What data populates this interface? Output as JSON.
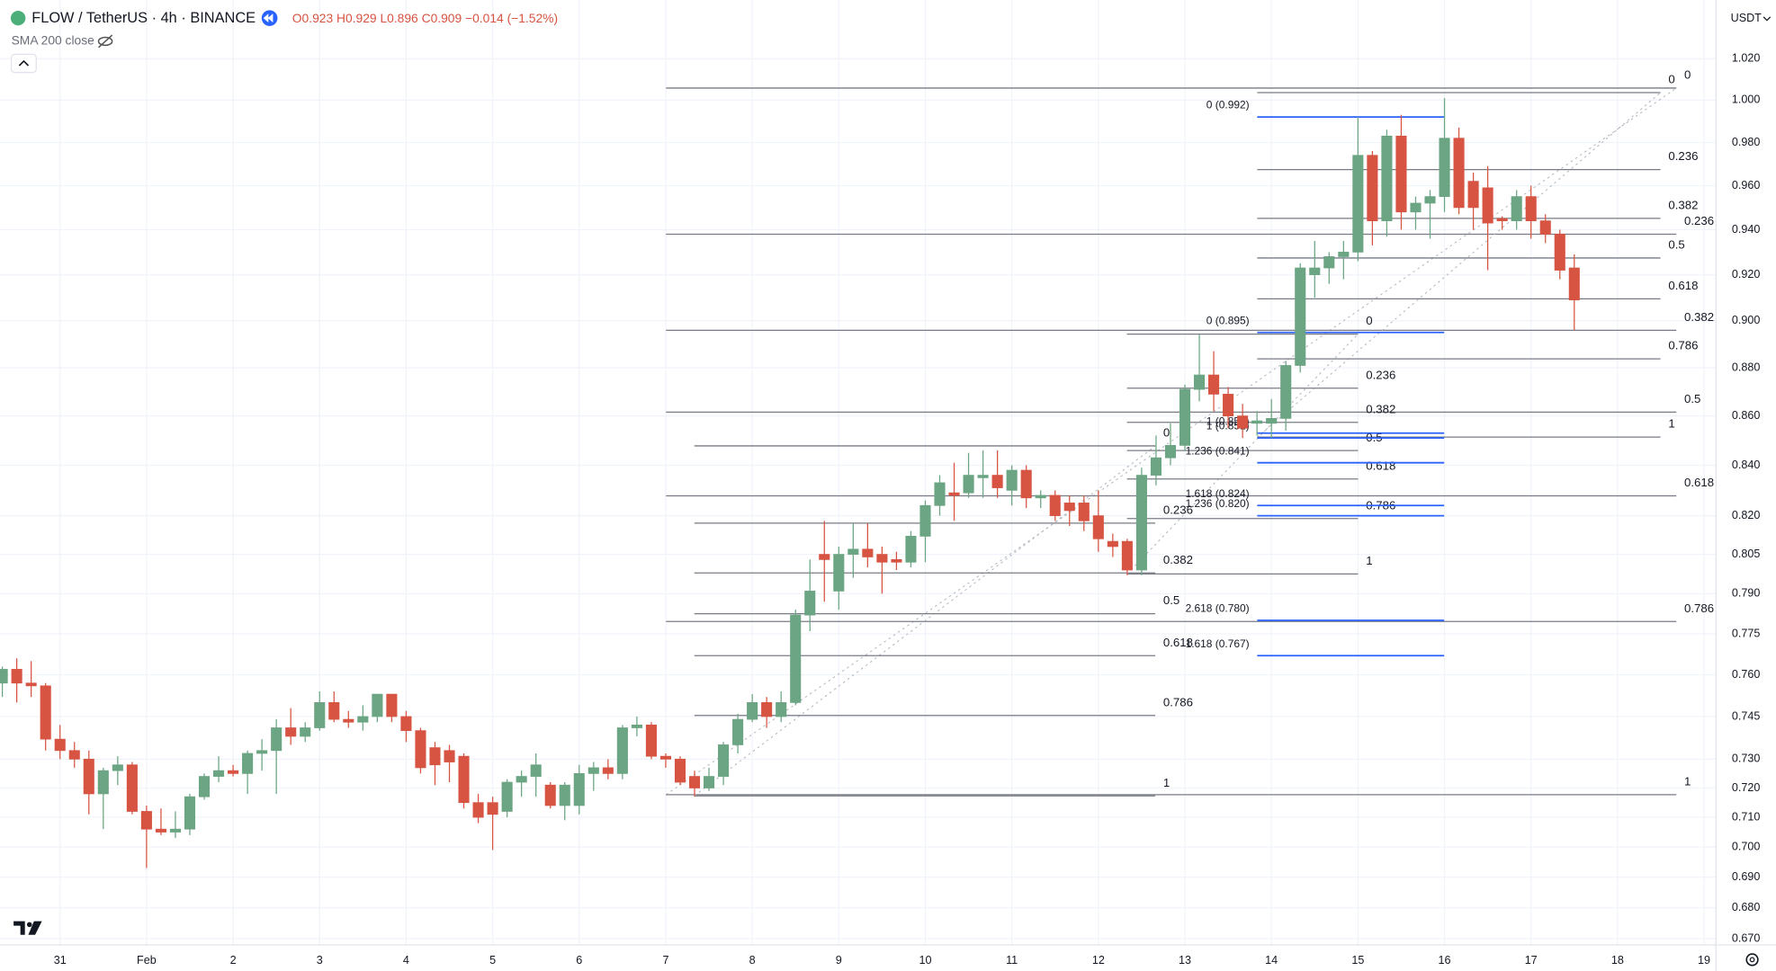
{
  "header": {
    "symbol": "FLOW / TetherUS · 4h · BINANCE",
    "ohlc": [
      "O0.923",
      "H0.929",
      "L0.896",
      "C0.909",
      "−0.014 (−1.52%)"
    ],
    "indicator": "SMA 200 close",
    "currency": "USDT"
  },
  "chart_data": {
    "type": "candlestick",
    "log_scale": true,
    "grid": true,
    "up_color": "#6ba583",
    "down_color": "#d75442",
    "x": [
      -16,
      -12,
      -8,
      -4,
      0,
      4,
      8,
      12,
      16,
      20,
      24,
      28,
      32,
      36,
      40,
      44,
      48,
      52,
      56,
      60,
      64,
      68,
      72,
      76,
      80,
      84,
      88,
      92,
      96,
      100,
      104,
      108,
      112,
      116,
      120,
      124,
      128,
      132,
      136,
      140,
      144,
      148,
      152,
      156,
      160,
      164,
      168,
      172,
      176,
      180,
      184,
      188,
      192,
      196,
      200,
      204,
      208,
      212,
      216,
      220,
      224,
      228,
      232,
      236,
      240,
      244,
      248,
      252,
      256,
      260,
      264,
      268,
      272,
      276,
      280,
      284,
      288,
      292,
      296,
      300,
      304,
      308,
      312,
      316,
      320,
      324,
      328,
      332,
      336,
      340,
      344,
      348,
      352,
      356,
      360,
      364,
      368,
      372,
      376,
      380,
      384,
      388,
      392,
      396,
      400,
      404,
      408,
      412,
      416,
      420
    ],
    "open": [
      0.757,
      0.762,
      0.757,
      0.756,
      0.737,
      0.733,
      0.73,
      0.718,
      0.726,
      0.728,
      0.712,
      0.706,
      0.705,
      0.706,
      0.717,
      0.724,
      0.726,
      0.725,
      0.732,
      0.733,
      0.741,
      0.738,
      0.741,
      0.75,
      0.744,
      0.743,
      0.745,
      0.753,
      0.745,
      0.74,
      0.734,
      0.733,
      0.731,
      0.715,
      0.715,
      0.712,
      0.722,
      0.724,
      0.721,
      0.714,
      0.714,
      0.725,
      0.727,
      0.725,
      0.741,
      0.742,
      0.731,
      0.73,
      0.724,
      0.72,
      0.724,
      0.735,
      0.744,
      0.75,
      0.745,
      0.75,
      0.782,
      0.805,
      0.791,
      0.805,
      0.807,
      0.805,
      0.803,
      0.802,
      0.812,
      0.824,
      0.829,
      0.829,
      0.835,
      0.836,
      0.83,
      0.838,
      0.827,
      0.828,
      0.825,
      0.825,
      0.82,
      0.81,
      0.81,
      0.799,
      0.836,
      0.843,
      0.848,
      0.871,
      0.877,
      0.869,
      0.86,
      0.857,
      0.857,
      0.859,
      0.881,
      0.92,
      0.923,
      0.928,
      0.93,
      0.974,
      0.944,
      0.983,
      0.948,
      0.952,
      0.955,
      0.982,
      0.962,
      0.959,
      0.945,
      0.944,
      0.955,
      0.944,
      0.938,
      0.923
    ],
    "high": [
      0.763,
      0.766,
      0.765,
      0.757,
      0.742,
      0.736,
      0.733,
      0.727,
      0.731,
      0.729,
      0.714,
      0.713,
      0.712,
      0.718,
      0.725,
      0.731,
      0.728,
      0.733,
      0.737,
      0.744,
      0.748,
      0.743,
      0.754,
      0.754,
      0.747,
      0.749,
      0.753,
      0.753,
      0.747,
      0.741,
      0.736,
      0.735,
      0.732,
      0.718,
      0.717,
      0.723,
      0.726,
      0.732,
      0.722,
      0.722,
      0.728,
      0.729,
      0.73,
      0.742,
      0.745,
      0.743,
      0.732,
      0.731,
      0.726,
      0.727,
      0.736,
      0.746,
      0.753,
      0.752,
      0.754,
      0.784,
      0.803,
      0.818,
      0.808,
      0.817,
      0.817,
      0.808,
      0.806,
      0.814,
      0.826,
      0.836,
      0.841,
      0.845,
      0.846,
      0.846,
      0.84,
      0.84,
      0.83,
      0.83,
      0.828,
      0.828,
      0.83,
      0.813,
      0.811,
      0.839,
      0.852,
      0.857,
      0.873,
      0.894,
      0.887,
      0.872,
      0.865,
      0.862,
      0.867,
      0.883,
      0.925,
      0.935,
      0.93,
      0.935,
      0.992,
      0.976,
      0.986,
      0.993,
      0.955,
      0.958,
      1.001,
      0.987,
      0.966,
      0.969,
      0.946,
      0.958,
      0.96,
      0.947,
      0.94,
      0.929
    ],
    "low": [
      0.752,
      0.75,
      0.752,
      0.733,
      0.73,
      0.727,
      0.711,
      0.706,
      0.721,
      0.711,
      0.693,
      0.704,
      0.703,
      0.704,
      0.716,
      0.722,
      0.724,
      0.718,
      0.726,
      0.718,
      0.735,
      0.736,
      0.74,
      0.743,
      0.741,
      0.74,
      0.743,
      0.743,
      0.736,
      0.725,
      0.721,
      0.722,
      0.713,
      0.708,
      0.699,
      0.71,
      0.717,
      0.717,
      0.713,
      0.709,
      0.711,
      0.719,
      0.723,
      0.723,
      0.738,
      0.73,
      0.727,
      0.721,
      0.717,
      0.719,
      0.721,
      0.732,
      0.743,
      0.741,
      0.743,
      0.749,
      0.776,
      0.787,
      0.784,
      0.796,
      0.8,
      0.79,
      0.799,
      0.8,
      0.802,
      0.82,
      0.818,
      0.827,
      0.827,
      0.827,
      0.824,
      0.823,
      0.823,
      0.818,
      0.816,
      0.814,
      0.806,
      0.804,
      0.797,
      0.797,
      0.832,
      0.84,
      0.846,
      0.866,
      0.862,
      0.855,
      0.851,
      0.852,
      0.851,
      0.854,
      0.878,
      0.91,
      0.916,
      0.918,
      0.926,
      0.933,
      0.937,
      0.94,
      0.94,
      0.936,
      0.948,
      0.947,
      0.94,
      0.922,
      0.94,
      0.94,
      0.936,
      0.934,
      0.918,
      0.896
    ],
    "close": [
      0.762,
      0.757,
      0.756,
      0.737,
      0.733,
      0.73,
      0.718,
      0.726,
      0.728,
      0.712,
      0.706,
      0.705,
      0.706,
      0.717,
      0.724,
      0.726,
      0.725,
      0.732,
      0.733,
      0.741,
      0.738,
      0.741,
      0.75,
      0.744,
      0.743,
      0.745,
      0.753,
      0.745,
      0.74,
      0.727,
      0.728,
      0.729,
      0.715,
      0.71,
      0.711,
      0.722,
      0.724,
      0.728,
      0.714,
      0.721,
      0.725,
      0.727,
      0.725,
      0.741,
      0.742,
      0.731,
      0.73,
      0.722,
      0.72,
      0.724,
      0.735,
      0.744,
      0.75,
      0.745,
      0.75,
      0.782,
      0.791,
      0.803,
      0.805,
      0.807,
      0.804,
      0.802,
      0.802,
      0.812,
      0.824,
      0.833,
      0.828,
      0.836,
      0.836,
      0.831,
      0.838,
      0.827,
      0.828,
      0.82,
      0.822,
      0.818,
      0.811,
      0.808,
      0.799,
      0.836,
      0.843,
      0.848,
      0.871,
      0.877,
      0.869,
      0.86,
      0.855,
      0.858,
      0.859,
      0.881,
      0.923,
      0.923,
      0.928,
      0.93,
      0.974,
      0.944,
      0.983,
      0.948,
      0.952,
      0.955,
      0.982,
      0.95,
      0.95,
      0.943,
      0.944,
      0.955,
      0.944,
      0.938,
      0.922,
      0.909
    ],
    "xlim": [
      -16.65,
      459.3
    ],
    "xticks": [
      {
        "value": 0,
        "label": "31"
      },
      {
        "value": 24,
        "label": "Feb"
      },
      {
        "value": 48,
        "label": "2"
      },
      {
        "value": 72,
        "label": "3"
      },
      {
        "value": 96,
        "label": "4"
      },
      {
        "value": 120,
        "label": "5"
      },
      {
        "value": 144,
        "label": "6"
      },
      {
        "value": 168,
        "label": "7"
      },
      {
        "value": 192,
        "label": "8"
      },
      {
        "value": 216,
        "label": "9"
      },
      {
        "value": 240,
        "label": "10"
      },
      {
        "value": 264,
        "label": "11"
      },
      {
        "value": 288,
        "label": "12"
      },
      {
        "value": 312,
        "label": "13"
      },
      {
        "value": 336,
        "label": "14"
      },
      {
        "value": 360,
        "label": "15"
      },
      {
        "value": 384,
        "label": "16"
      },
      {
        "value": 408,
        "label": "17"
      },
      {
        "value": 432,
        "label": "18"
      },
      {
        "value": 456,
        "label": "19"
      }
    ],
    "ylim": [
      0.668,
      1.049
    ],
    "yticks": [
      {
        "value": 1.02,
        "label": "1.020"
      },
      {
        "value": 1.0,
        "label": "1.000"
      },
      {
        "value": 0.98,
        "label": "0.980"
      },
      {
        "value": 0.96,
        "label": "0.960"
      },
      {
        "value": 0.94,
        "label": "0.940"
      },
      {
        "value": 0.92,
        "label": "0.920"
      },
      {
        "value": 0.9,
        "label": "0.900"
      },
      {
        "value": 0.88,
        "label": "0.880"
      },
      {
        "value": 0.86,
        "label": "0.860"
      },
      {
        "value": 0.84,
        "label": "0.840"
      },
      {
        "value": 0.82,
        "label": "0.820"
      },
      0.805,
      {
        "value": 0.79,
        "label": "0.790"
      },
      0.775,
      {
        "value": 0.76,
        "label": "0.760"
      },
      0.745,
      {
        "value": 0.73,
        "label": "0.730"
      },
      {
        "value": 0.72,
        "label": "0.720"
      },
      {
        "value": 0.71,
        "label": "0.710"
      },
      {
        "value": 0.7,
        "label": "0.700"
      },
      {
        "value": 0.69,
        "label": "0.690"
      },
      {
        "value": 0.68,
        "label": "0.680"
      },
      {
        "value": 0.67,
        "label": "0.670"
      }
    ],
    "fibs": [
      {
        "color": "#787b86",
        "levels": [
          {
            "ratio": 0,
            "price": 1.0058
          },
          {
            "ratio": 0.236,
            "price": 0.938
          },
          {
            "ratio": 0.382,
            "price": 0.8959
          },
          {
            "ratio": 0.5,
            "price": 0.8616
          },
          {
            "ratio": 0.618,
            "price": 0.8278
          },
          {
            "ratio": 0.786,
            "price": 0.7796
          },
          {
            "ratio": 1,
            "price": 0.7177
          }
        ]
      },
      {
        "color": "#787b86",
        "levels": [
          {
            "ratio": 0,
            "price": 1.0036
          },
          {
            "ratio": 0.236,
            "price": 0.9674
          },
          {
            "ratio": 0.382,
            "price": 0.9451
          },
          {
            "ratio": 0.5,
            "price": 0.9274
          },
          {
            "ratio": 0.618,
            "price": 0.9095
          },
          {
            "ratio": 0.786,
            "price": 0.8838
          },
          {
            "ratio": 1,
            "price": 0.8514
          }
        ]
      },
      {
        "color": "#787b86",
        "levels": [
          {
            "ratio": 0,
            "price": 0.8478
          },
          {
            "ratio": 0.236,
            "price": 0.8171
          },
          {
            "ratio": 0.382,
            "price": 0.7979
          },
          {
            "ratio": 0.5,
            "price": 0.7825
          },
          {
            "ratio": 0.618,
            "price": 0.767
          },
          {
            "ratio": 0.786,
            "price": 0.7454
          },
          {
            "ratio": 1,
            "price": 0.7173
          }
        ]
      },
      {
        "color": "#787b86",
        "levels": [
          {
            "ratio": 0,
            "price": 0.8943
          },
          {
            "ratio": 0.236,
            "price": 0.8715
          },
          {
            "ratio": 0.382,
            "price": 0.8574
          },
          {
            "ratio": 0.5,
            "price": 0.8459
          },
          {
            "ratio": 0.618,
            "price": 0.8345
          },
          {
            "ratio": 0.786,
            "price": 0.8189
          },
          {
            "ratio": 1,
            "price": 0.7975
          }
        ]
      },
      {
        "color": "#2962ff",
        "levels": [
          {
            "label": "0 (0.992)",
            "price": 0.992
          },
          {
            "label": "1 (0.853)",
            "price": 0.853
          },
          {
            "label": "1.236 (0.820)",
            "price": 0.82
          },
          {
            "label": "1.618 (0.767)",
            "price": 0.767
          }
        ]
      },
      {
        "color": "#2962ff",
        "levels": [
          {
            "label": "0 (0.895)",
            "price": 0.895
          },
          {
            "label": "1 (0.851)",
            "price": 0.851
          },
          {
            "label": "1.236 (0.841)",
            "price": 0.841
          },
          {
            "label": "1.618 (0.824)",
            "price": 0.824
          },
          {
            "label": "2.618 (0.780)",
            "price": 0.78
          }
        ]
      }
    ]
  }
}
